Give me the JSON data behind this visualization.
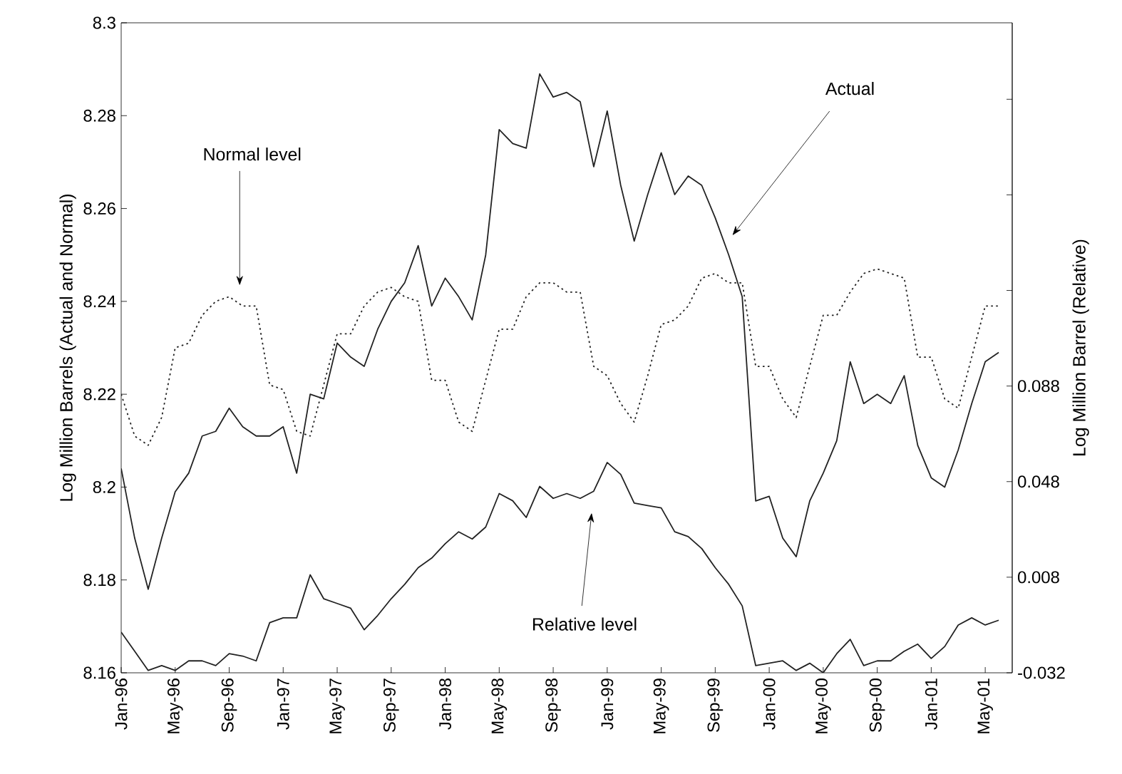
{
  "chart_data": {
    "type": "line",
    "ylabel": "Log Million Barrels (Actual and Normal)",
    "y2label": "Log Million Barrel (Relative)",
    "x": [
      "1996-01",
      "1996-02",
      "1996-03",
      "1996-04",
      "1996-05",
      "1996-06",
      "1996-07",
      "1996-08",
      "1996-09",
      "1996-10",
      "1996-11",
      "1996-12",
      "1997-01",
      "1997-02",
      "1997-03",
      "1997-04",
      "1997-05",
      "1997-06",
      "1997-07",
      "1997-08",
      "1997-09",
      "1997-10",
      "1997-11",
      "1997-12",
      "1998-01",
      "1998-02",
      "1998-03",
      "1998-04",
      "1998-05",
      "1998-06",
      "1998-07",
      "1998-08",
      "1998-09",
      "1998-10",
      "1998-11",
      "1998-12",
      "1999-01",
      "1999-02",
      "1999-03",
      "1999-04",
      "1999-05",
      "1999-06",
      "1999-07",
      "1999-08",
      "1999-09",
      "1999-10",
      "1999-11",
      "1999-12",
      "2000-01",
      "2000-02",
      "2000-03",
      "2000-04",
      "2000-05",
      "2000-06",
      "2000-07",
      "2000-08",
      "2000-09",
      "2000-10",
      "2000-11",
      "2000-12",
      "2001-01",
      "2001-02",
      "2001-03",
      "2001-04",
      "2001-05",
      "2001-06"
    ],
    "series": [
      {
        "color": "#222222",
        "line_style": "solid",
        "values": [
          8.204,
          8.189,
          8.178,
          8.189,
          8.199,
          8.203,
          8.211,
          8.212,
          8.217,
          8.213,
          8.211,
          8.211,
          8.213,
          8.203,
          8.22,
          8.219,
          8.231,
          8.228,
          8.226,
          8.234,
          8.24,
          8.244,
          8.252,
          8.239,
          8.245,
          8.241,
          8.236,
          8.25,
          8.277,
          8.274,
          8.273,
          8.289,
          8.284,
          8.285,
          8.283,
          8.269,
          8.281,
          8.265,
          8.253,
          8.263,
          8.272,
          8.263,
          8.267,
          8.265,
          8.258,
          8.25,
          8.241,
          8.197,
          8.198,
          8.189,
          8.185,
          8.197,
          8.203,
          8.21,
          8.227,
          8.218,
          8.22,
          8.218,
          8.224,
          8.209,
          8.202,
          8.2,
          8.208,
          8.218,
          8.227,
          8.229
        ]
      },
      {
        "color": "#222222",
        "line_style": "dotted",
        "values": [
          8.22,
          8.211,
          8.209,
          8.215,
          8.23,
          8.231,
          8.237,
          8.24,
          8.241,
          8.239,
          8.239,
          8.222,
          8.221,
          8.212,
          8.211,
          8.222,
          8.233,
          8.233,
          8.239,
          8.242,
          8.243,
          8.241,
          8.24,
          8.223,
          8.223,
          8.214,
          8.212,
          8.223,
          8.234,
          8.234,
          8.241,
          8.244,
          8.244,
          8.242,
          8.242,
          8.226,
          8.224,
          8.218,
          8.214,
          8.224,
          8.235,
          8.236,
          8.239,
          8.245,
          8.246,
          8.244,
          8.244,
          8.226,
          8.226,
          8.219,
          8.215,
          8.226,
          8.237,
          8.237,
          8.242,
          8.246,
          8.247,
          8.246,
          8.245,
          8.228,
          8.228,
          8.219,
          8.217,
          8.228,
          8.239,
          8.239
        ]
      },
      {
        "color": "#222222",
        "line_style": "solid",
        "axis": "y2",
        "values": [
          -0.015,
          -0.023,
          -0.031,
          -0.029,
          -0.031,
          -0.027,
          -0.027,
          -0.029,
          -0.024,
          -0.025,
          -0.027,
          -0.011,
          -0.009,
          -0.009,
          0.009,
          -0.001,
          -0.003,
          -0.005,
          -0.014,
          -0.008,
          -0.001,
          0.005,
          0.012,
          0.016,
          0.022,
          0.027,
          0.024,
          0.029,
          0.043,
          0.04,
          0.033,
          0.046,
          0.041,
          0.043,
          0.041,
          0.044,
          0.056,
          0.051,
          0.039,
          0.038,
          0.037,
          0.027,
          0.025,
          0.02,
          0.012,
          0.005,
          -0.004,
          -0.029,
          -0.028,
          -0.027,
          -0.031,
          -0.028,
          -0.032,
          -0.024,
          -0.018,
          -0.029,
          -0.027,
          -0.027,
          -0.023,
          -0.02,
          -0.026,
          -0.021,
          -0.012,
          -0.009,
          -0.012,
          -0.01
        ]
      }
    ],
    "xlim": [
      "1996-01",
      "2001-07"
    ],
    "xticks": [
      {
        "value": "1996-01",
        "label": "Jan-96"
      },
      {
        "value": "1996-05",
        "label": "May-96"
      },
      {
        "value": "1996-09",
        "label": "Sep-96"
      },
      {
        "value": "1997-01",
        "label": "Jan-97"
      },
      {
        "value": "1997-05",
        "label": "May-97"
      },
      {
        "value": "1997-09",
        "label": "Sep-97"
      },
      {
        "value": "1998-01",
        "label": "Jan-98"
      },
      {
        "value": "1998-05",
        "label": "May-98"
      },
      {
        "value": "1998-09",
        "label": "Sep-98"
      },
      {
        "value": "1999-01",
        "label": "Jan-99"
      },
      {
        "value": "1999-05",
        "label": "May-99"
      },
      {
        "value": "1999-09",
        "label": "Sep-99"
      },
      {
        "value": "2000-01",
        "label": "Jan-00"
      },
      {
        "value": "2000-05",
        "label": "May-00"
      },
      {
        "value": "2000-09",
        "label": "Sep-00"
      },
      {
        "value": "2001-01",
        "label": "Jan-01"
      },
      {
        "value": "2001-05",
        "label": "May-01"
      }
    ],
    "ylim": [
      8.16,
      8.3
    ],
    "yticks": [
      8.16,
      8.18,
      {
        "value": 8.2,
        "label": "8.2"
      },
      8.22,
      8.24,
      8.26,
      8.28,
      {
        "value": 8.3,
        "label": "8.3"
      }
    ],
    "y2lim": [
      -0.032,
      0.24
    ],
    "y2ticks": [
      -0.032,
      0.008,
      0.048,
      0.088,
      {
        "value": 0.128,
        "label": null
      },
      {
        "value": 0.168,
        "label": null
      },
      {
        "value": 0.208,
        "label": null
      }
    ],
    "annotations": [
      "Normal level",
      "Actual",
      "Relative level"
    ],
    "marker": "none"
  }
}
